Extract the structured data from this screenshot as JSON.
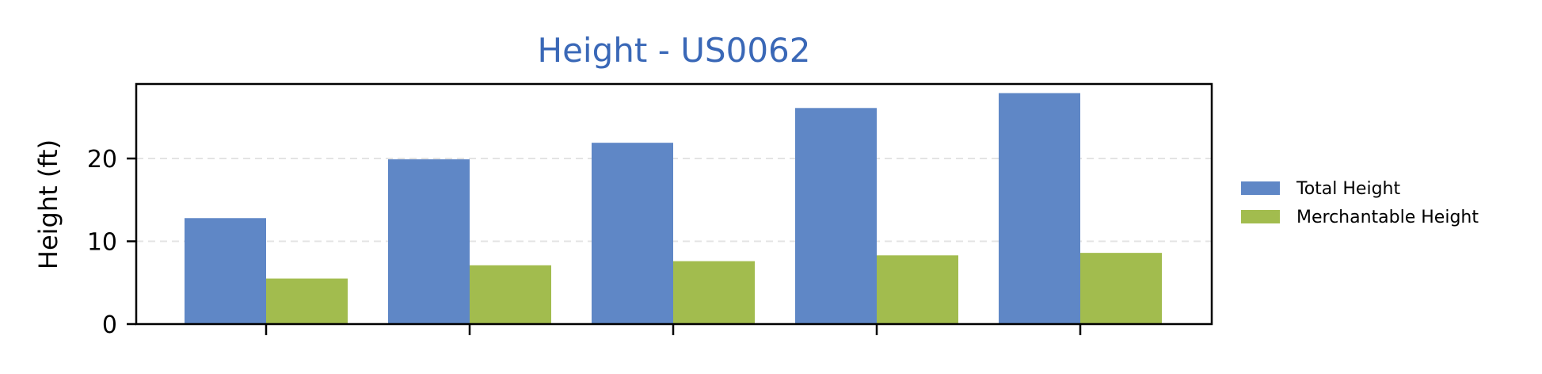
{
  "chart_data": {
    "type": "bar",
    "title": "Height - US0062",
    "xlabel": "",
    "ylabel": "Height (ft)",
    "ylim": [
      0,
      29
    ],
    "yticks": [
      0,
      10,
      20
    ],
    "grid": "y-dashed",
    "categories": [
      "",
      "",
      "",
      "",
      ""
    ],
    "series": [
      {
        "name": "Total Height",
        "values": [
          12.8,
          19.9,
          21.9,
          26.1,
          27.9
        ]
      },
      {
        "name": "Merchantable Height",
        "values": [
          5.5,
          7.1,
          7.6,
          8.3,
          8.6
        ]
      }
    ],
    "legend_position": "right"
  },
  "colors": {
    "title": "#3a68b7",
    "total_height": "#5f87c6",
    "merchantable_height": "#a2bc4e",
    "grid": "#e3e3e3",
    "axis": "#000000"
  }
}
